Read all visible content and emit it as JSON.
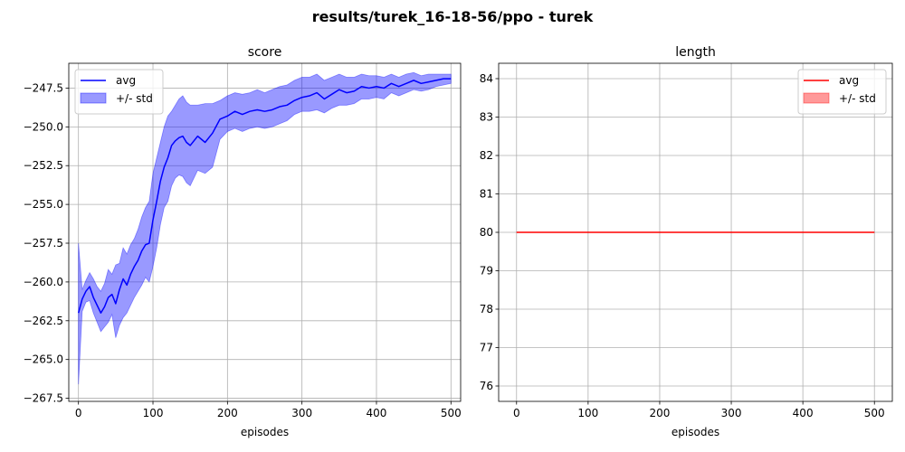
{
  "figure": {
    "title": "results/turek_16-18-56/ppo - turek"
  },
  "chart_data": [
    {
      "type": "line",
      "title": "score",
      "xlabel": "episodes",
      "ylabel": "",
      "xlim": [
        -13,
        513
      ],
      "ylim": [
        -267.7,
        -245.9
      ],
      "xticks": [
        0,
        100,
        200,
        300,
        400,
        500
      ],
      "yticks": [
        -267.5,
        -265.0,
        -262.5,
        -260.0,
        -257.5,
        -255.0,
        -252.5,
        -250.0,
        -247.5
      ],
      "ytick_labels": [
        "−267.5",
        "−265.0",
        "−262.5",
        "−260.0",
        "−257.5",
        "−255.0",
        "−252.5",
        "−250.0",
        "−247.5"
      ],
      "xtick_labels": [
        "0",
        "100",
        "200",
        "300",
        "400",
        "500"
      ],
      "grid": true,
      "legend": {
        "position": "upper-left",
        "entries": [
          "avg",
          "+/- std"
        ]
      },
      "colors": {
        "line": "#0000ff",
        "band": "#0000ff"
      },
      "series": [
        {
          "name": "avg",
          "x": [
            0,
            5,
            10,
            15,
            20,
            25,
            30,
            35,
            40,
            45,
            50,
            55,
            60,
            65,
            70,
            75,
            80,
            85,
            90,
            95,
            100,
            105,
            110,
            115,
            120,
            125,
            130,
            135,
            140,
            145,
            150,
            160,
            170,
            180,
            190,
            200,
            210,
            220,
            230,
            240,
            250,
            260,
            270,
            280,
            290,
            300,
            310,
            320,
            330,
            340,
            350,
            360,
            370,
            380,
            390,
            400,
            410,
            420,
            430,
            440,
            450,
            460,
            470,
            480,
            490,
            500
          ],
          "y": [
            -262.0,
            -261.1,
            -260.6,
            -260.3,
            -261.0,
            -261.5,
            -262.0,
            -261.6,
            -261.0,
            -260.8,
            -261.4,
            -260.5,
            -259.8,
            -260.2,
            -259.5,
            -259.0,
            -258.6,
            -258.0,
            -257.6,
            -257.5,
            -256.0,
            -254.8,
            -253.5,
            -252.6,
            -252.0,
            -251.2,
            -250.9,
            -250.7,
            -250.6,
            -251.0,
            -251.2,
            -250.6,
            -251.0,
            -250.4,
            -249.5,
            -249.3,
            -249.0,
            -249.2,
            -249.0,
            -248.9,
            -249.0,
            -248.9,
            -248.7,
            -248.6,
            -248.3,
            -248.1,
            -248.0,
            -247.8,
            -248.2,
            -247.9,
            -247.6,
            -247.8,
            -247.7,
            -247.4,
            -247.5,
            -247.4,
            -247.5,
            -247.2,
            -247.4,
            -247.2,
            -247.0,
            -247.2,
            -247.1,
            -247.0,
            -246.9,
            -246.9
          ]
        },
        {
          "name": "+/- std",
          "x": [
            0,
            5,
            10,
            15,
            20,
            25,
            30,
            35,
            40,
            45,
            50,
            55,
            60,
            65,
            70,
            75,
            80,
            85,
            90,
            95,
            100,
            105,
            110,
            115,
            120,
            125,
            130,
            135,
            140,
            145,
            150,
            160,
            170,
            180,
            190,
            200,
            210,
            220,
            230,
            240,
            250,
            260,
            270,
            280,
            290,
            300,
            310,
            320,
            330,
            340,
            350,
            360,
            370,
            380,
            390,
            400,
            410,
            420,
            430,
            440,
            450,
            460,
            470,
            480,
            490,
            500
          ],
          "upper": [
            -257.5,
            -260.5,
            -259.9,
            -259.4,
            -259.8,
            -260.3,
            -260.6,
            -260.1,
            -259.2,
            -259.5,
            -258.9,
            -258.8,
            -257.8,
            -258.2,
            -257.6,
            -257.2,
            -256.6,
            -255.8,
            -255.2,
            -254.8,
            -253.0,
            -252.0,
            -251.0,
            -250.0,
            -249.3,
            -249.0,
            -248.6,
            -248.2,
            -248.0,
            -248.4,
            -248.6,
            -248.6,
            -248.5,
            -248.5,
            -248.3,
            -248.0,
            -247.8,
            -247.9,
            -247.8,
            -247.6,
            -247.8,
            -247.6,
            -247.4,
            -247.3,
            -247.0,
            -246.8,
            -246.8,
            -246.6,
            -247.0,
            -246.8,
            -246.6,
            -246.8,
            -246.8,
            -246.6,
            -246.7,
            -246.7,
            -246.8,
            -246.6,
            -246.8,
            -246.6,
            -246.5,
            -246.7,
            -246.6,
            -246.6,
            -246.6,
            -246.6
          ],
          "lower": [
            -266.6,
            -261.9,
            -261.3,
            -261.2,
            -262.0,
            -262.6,
            -263.2,
            -262.9,
            -262.6,
            -262.1,
            -263.6,
            -262.8,
            -262.3,
            -262.0,
            -261.5,
            -261.0,
            -260.6,
            -260.2,
            -259.7,
            -260.0,
            -259.0,
            -257.8,
            -256.3,
            -255.2,
            -254.8,
            -253.8,
            -253.3,
            -253.1,
            -253.2,
            -253.6,
            -253.8,
            -252.8,
            -253.0,
            -252.6,
            -250.8,
            -250.3,
            -250.1,
            -250.3,
            -250.1,
            -250.0,
            -250.1,
            -250.0,
            -249.8,
            -249.6,
            -249.2,
            -249.0,
            -249.0,
            -248.9,
            -249.1,
            -248.8,
            -248.6,
            -248.6,
            -248.5,
            -248.2,
            -248.2,
            -248.1,
            -248.2,
            -247.8,
            -248.0,
            -247.8,
            -247.6,
            -247.7,
            -247.6,
            -247.4,
            -247.3,
            -247.2
          ]
        }
      ]
    },
    {
      "type": "line",
      "title": "length",
      "xlabel": "episodes",
      "ylabel": "",
      "xlim": [
        -25,
        525
      ],
      "ylim": [
        75.6,
        84.4
      ],
      "xticks": [
        0,
        100,
        200,
        300,
        400,
        500
      ],
      "yticks": [
        76,
        77,
        78,
        79,
        80,
        81,
        82,
        83,
        84
      ],
      "ytick_labels": [
        "76",
        "77",
        "78",
        "79",
        "80",
        "81",
        "82",
        "83",
        "84"
      ],
      "xtick_labels": [
        "0",
        "100",
        "200",
        "300",
        "400",
        "500"
      ],
      "grid": true,
      "legend": {
        "position": "upper-right",
        "entries": [
          "avg",
          "+/- std"
        ]
      },
      "colors": {
        "line": "#ff0000",
        "band": "#ff0000"
      },
      "series": [
        {
          "name": "avg",
          "x": [
            0,
            500
          ],
          "y": [
            80,
            80
          ]
        },
        {
          "name": "+/- std",
          "x": [
            0,
            500
          ],
          "upper": [
            80,
            80
          ],
          "lower": [
            80,
            80
          ]
        }
      ]
    }
  ]
}
